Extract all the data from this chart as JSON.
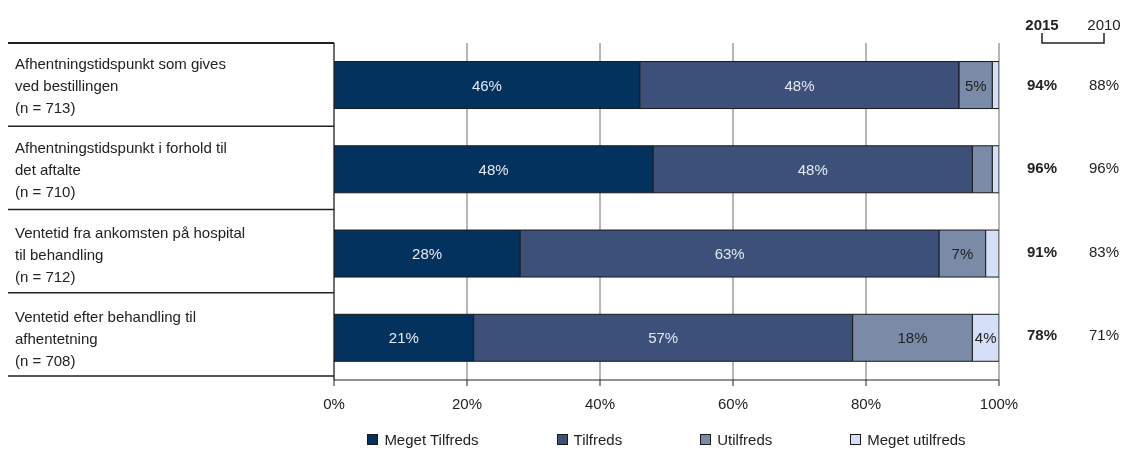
{
  "chart_data": {
    "type": "bar",
    "orientation": "horizontal",
    "stacked": true,
    "categories": [
      "Afhentningstidspunkt som gives\nved bestillingen\n(n = 713)",
      "Afhentningstidspunkt i forhold til\ndet aftalte\n(n = 710)",
      "Ventetid fra ankomsten på hospital\ntil behandling\n(n = 712)",
      "Ventetid efter behandling til\nafhentetning\n(n = 708)"
    ],
    "series": [
      {
        "name": "Meget Tilfreds",
        "color": "#04325f",
        "values": [
          46,
          48,
          28,
          21
        ],
        "value_labels": [
          "46%",
          "48%",
          "28%",
          "21%"
        ]
      },
      {
        "name": "Tilfreds",
        "color": "#3c5079",
        "values": [
          48,
          48,
          63,
          57
        ],
        "value_labels": [
          "48%",
          "48%",
          "63%",
          "57%"
        ]
      },
      {
        "name": "Utilfreds",
        "color": "#7a8ba8",
        "values": [
          5,
          3,
          7,
          18
        ],
        "value_labels": [
          "5%",
          null,
          "7%",
          "18%"
        ]
      },
      {
        "name": "Meget utilfreds",
        "color": "#d5dff8",
        "values": [
          1,
          1,
          2,
          4
        ],
        "value_labels": [
          null,
          null,
          null,
          "4%"
        ]
      }
    ],
    "xlim": [
      0,
      100
    ],
    "xticks": [
      {
        "value": 0,
        "label": "0%"
      },
      {
        "value": 20,
        "label": "20%"
      },
      {
        "value": 40,
        "label": "40%"
      },
      {
        "value": 60,
        "label": "60%"
      },
      {
        "value": 80,
        "label": "80%"
      },
      {
        "value": 100,
        "label": "100%"
      }
    ],
    "grid": "x",
    "legend": "bottom",
    "annotations": [
      "2015",
      "2010",
      "94%",
      "88%",
      "96%",
      "96%",
      "91%",
      "83%",
      "78%",
      "71%"
    ]
  }
}
